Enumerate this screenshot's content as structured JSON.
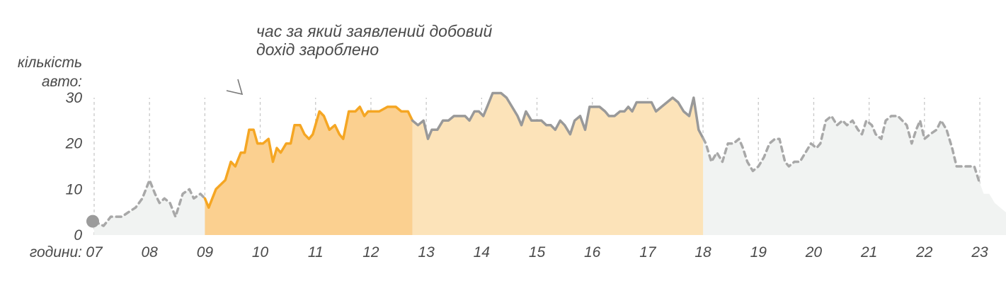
{
  "annotation": {
    "lines": [
      "час за який заявлений добовий",
      "дохід зароблено"
    ]
  },
  "chart_data": {
    "type": "area",
    "title": "",
    "ylabel_lines": [
      "кількість",
      "авто:"
    ],
    "xlabel": "години:",
    "x_units": "hour of day",
    "xlim": [
      7,
      23
    ],
    "ylim": [
      0,
      30
    ],
    "grid": "vertical dashed lines at each hour",
    "x_tick_labels": [
      "07",
      "08",
      "09",
      "10",
      "11",
      "12",
      "13",
      "14",
      "15",
      "16",
      "17",
      "18",
      "19",
      "20",
      "21",
      "22",
      "23"
    ],
    "y_ticks": [
      0,
      10,
      20,
      30
    ],
    "colors": {
      "dashed_line": "#a8a8a8",
      "gray_fill": "#f1f3f2",
      "earning_line": "#f5a623",
      "earning_fill": "#fbd090",
      "light_fill": "#fce3b9",
      "solid_line": "#999999",
      "start_marker": "#9b9b9b",
      "grid": "#c8c8c8",
      "text": "#4a4a4a"
    },
    "regions": [
      {
        "name": "earning",
        "x_from": 9.0,
        "x_to": 12.75
      },
      {
        "name": "light",
        "x_from": 12.75,
        "x_to": 18.0
      }
    ],
    "series_segments": [
      {
        "style": "dashed",
        "x_from": 7.0,
        "x_to": 9.0
      },
      {
        "style": "orange",
        "x_from": 9.0,
        "x_to": 12.75
      },
      {
        "style": "gray-solid",
        "x_from": 12.75,
        "x_to": 18.0
      },
      {
        "style": "dashed",
        "x_from": 18.0,
        "x_to": 23.0
      }
    ],
    "start_marker": {
      "x": 7.0,
      "y": 3
    },
    "series": [
      {
        "points": [
          [
            7.0,
            3
          ],
          [
            7.17,
            2
          ],
          [
            7.3,
            4
          ],
          [
            7.5,
            4
          ],
          [
            7.62,
            5
          ],
          [
            7.75,
            6
          ],
          [
            7.87,
            8
          ],
          [
            8.0,
            12
          ],
          [
            8.1,
            9
          ],
          [
            8.18,
            7
          ],
          [
            8.27,
            8
          ],
          [
            8.37,
            7
          ],
          [
            8.47,
            4
          ],
          [
            8.6,
            9
          ],
          [
            8.72,
            10
          ],
          [
            8.8,
            8
          ],
          [
            8.92,
            9
          ],
          [
            9.0,
            8
          ],
          [
            9.07,
            6
          ],
          [
            9.2,
            10
          ],
          [
            9.37,
            12
          ],
          [
            9.47,
            16
          ],
          [
            9.55,
            15
          ],
          [
            9.65,
            18
          ],
          [
            9.72,
            18
          ],
          [
            9.8,
            23
          ],
          [
            9.88,
            23
          ],
          [
            9.95,
            20
          ],
          [
            10.05,
            20
          ],
          [
            10.15,
            21
          ],
          [
            10.23,
            16
          ],
          [
            10.3,
            19
          ],
          [
            10.37,
            18
          ],
          [
            10.47,
            20
          ],
          [
            10.55,
            20
          ],
          [
            10.62,
            24
          ],
          [
            10.72,
            24
          ],
          [
            10.8,
            22
          ],
          [
            10.88,
            21
          ],
          [
            10.95,
            22
          ],
          [
            11.07,
            27
          ],
          [
            11.15,
            26
          ],
          [
            11.25,
            23
          ],
          [
            11.35,
            24
          ],
          [
            11.43,
            22
          ],
          [
            11.5,
            21
          ],
          [
            11.6,
            27
          ],
          [
            11.72,
            27
          ],
          [
            11.8,
            28
          ],
          [
            11.88,
            26
          ],
          [
            11.95,
            27
          ],
          [
            12.15,
            27
          ],
          [
            12.3,
            28
          ],
          [
            12.45,
            28
          ],
          [
            12.55,
            27
          ],
          [
            12.67,
            27
          ],
          [
            12.75,
            25
          ],
          [
            12.85,
            24
          ],
          [
            12.95,
            25
          ],
          [
            13.03,
            21
          ],
          [
            13.1,
            23
          ],
          [
            13.2,
            23
          ],
          [
            13.3,
            25
          ],
          [
            13.4,
            25
          ],
          [
            13.5,
            26
          ],
          [
            13.7,
            26
          ],
          [
            13.78,
            25
          ],
          [
            13.87,
            27
          ],
          [
            13.95,
            27
          ],
          [
            14.03,
            26
          ],
          [
            14.1,
            28
          ],
          [
            14.2,
            31
          ],
          [
            14.35,
            31
          ],
          [
            14.45,
            30
          ],
          [
            14.55,
            28
          ],
          [
            14.65,
            26
          ],
          [
            14.72,
            24
          ],
          [
            14.8,
            27
          ],
          [
            14.9,
            25
          ],
          [
            15.08,
            25
          ],
          [
            15.17,
            24
          ],
          [
            15.25,
            24
          ],
          [
            15.33,
            23
          ],
          [
            15.42,
            25
          ],
          [
            15.5,
            24
          ],
          [
            15.6,
            22
          ],
          [
            15.68,
            25
          ],
          [
            15.78,
            26
          ],
          [
            15.87,
            23
          ],
          [
            15.95,
            28
          ],
          [
            16.13,
            28
          ],
          [
            16.23,
            27
          ],
          [
            16.3,
            26
          ],
          [
            16.4,
            26
          ],
          [
            16.5,
            27
          ],
          [
            16.58,
            27
          ],
          [
            16.65,
            28
          ],
          [
            16.72,
            27
          ],
          [
            16.8,
            29
          ],
          [
            17.07,
            29
          ],
          [
            17.15,
            27
          ],
          [
            17.25,
            28
          ],
          [
            17.35,
            29
          ],
          [
            17.45,
            30
          ],
          [
            17.55,
            29
          ],
          [
            17.65,
            27
          ],
          [
            17.75,
            26
          ],
          [
            17.83,
            30
          ],
          [
            17.92,
            23
          ],
          [
            18.05,
            20
          ],
          [
            18.15,
            16
          ],
          [
            18.25,
            18
          ],
          [
            18.35,
            16
          ],
          [
            18.45,
            20
          ],
          [
            18.55,
            20
          ],
          [
            18.65,
            21
          ],
          [
            18.72,
            19
          ],
          [
            18.8,
            16
          ],
          [
            18.9,
            14
          ],
          [
            19.0,
            15
          ],
          [
            19.1,
            17
          ],
          [
            19.2,
            20
          ],
          [
            19.3,
            21
          ],
          [
            19.38,
            21
          ],
          [
            19.48,
            16
          ],
          [
            19.55,
            15
          ],
          [
            19.65,
            16
          ],
          [
            19.75,
            16
          ],
          [
            19.85,
            18
          ],
          [
            19.95,
            20
          ],
          [
            20.05,
            19
          ],
          [
            20.12,
            20
          ],
          [
            20.22,
            25
          ],
          [
            20.32,
            26
          ],
          [
            20.42,
            24
          ],
          [
            20.52,
            25
          ],
          [
            20.6,
            24
          ],
          [
            20.7,
            25
          ],
          [
            20.8,
            23
          ],
          [
            20.87,
            22
          ],
          [
            20.95,
            25
          ],
          [
            21.05,
            24
          ],
          [
            21.12,
            22
          ],
          [
            21.22,
            21
          ],
          [
            21.3,
            25
          ],
          [
            21.4,
            26
          ],
          [
            21.52,
            26
          ],
          [
            21.6,
            25
          ],
          [
            21.68,
            24
          ],
          [
            21.77,
            20
          ],
          [
            21.85,
            23
          ],
          [
            21.92,
            25
          ],
          [
            22.0,
            21
          ],
          [
            22.1,
            22
          ],
          [
            22.22,
            23
          ],
          [
            22.3,
            25
          ],
          [
            22.4,
            23
          ],
          [
            22.5,
            19
          ],
          [
            22.58,
            15
          ],
          [
            22.7,
            15
          ],
          [
            22.9,
            15
          ],
          [
            22.98,
            12
          ],
          [
            23.07,
            9
          ],
          [
            23.17,
            9
          ],
          [
            23.27,
            7
          ],
          [
            23.37,
            6
          ],
          [
            23.47,
            5
          ],
          [
            23.55,
            5
          ],
          [
            23.62,
            9
          ]
        ]
      }
    ]
  }
}
